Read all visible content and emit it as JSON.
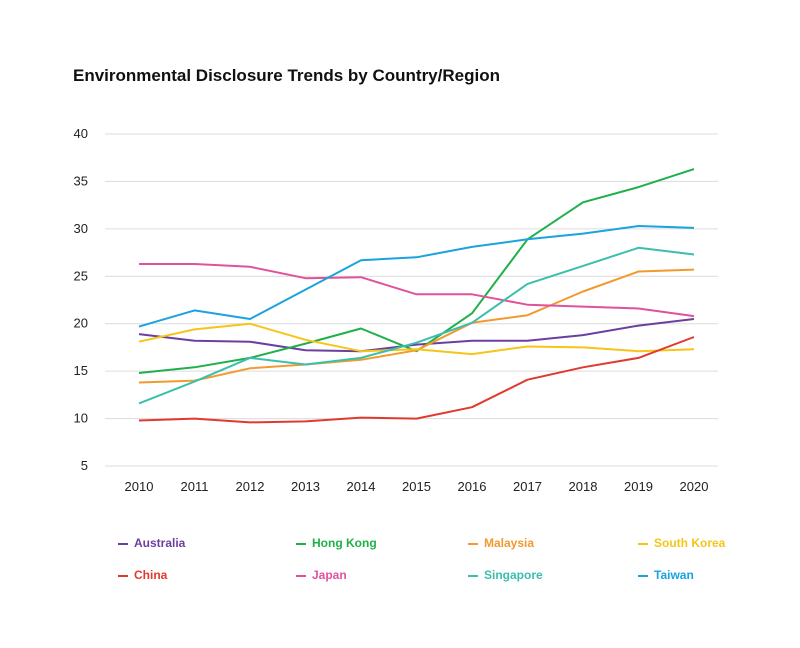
{
  "chart_data": {
    "type": "line",
    "title": "Environmental Disclosure Trends by Country/Region",
    "xlabel": "",
    "ylabel": "",
    "x": [
      "2010",
      "2011",
      "2012",
      "2013",
      "2014",
      "2015",
      "2016",
      "2017",
      "2018",
      "2019",
      "2020"
    ],
    "yticks": [
      5,
      10,
      15,
      20,
      25,
      30,
      35,
      40
    ],
    "ylim": [
      5,
      40
    ],
    "grid": true,
    "legend_position": "bottom",
    "series": [
      {
        "name": "Australia",
        "color": "#6b3fa0",
        "values": [
          18.9,
          18.2,
          18.1,
          17.2,
          17.1,
          17.8,
          18.2,
          18.2,
          18.8,
          19.8,
          20.5
        ]
      },
      {
        "name": "Hong Kong",
        "color": "#1fb04a",
        "values": [
          14.8,
          15.4,
          16.4,
          17.9,
          19.5,
          17.1,
          21.1,
          28.9,
          32.8,
          34.4,
          36.3
        ]
      },
      {
        "name": "Malaysia",
        "color": "#f29a2e",
        "values": [
          13.8,
          14.0,
          15.3,
          15.7,
          16.2,
          17.2,
          20.1,
          20.9,
          23.4,
          25.5,
          25.7
        ]
      },
      {
        "name": "South Korea",
        "color": "#f5c518",
        "values": [
          18.1,
          19.4,
          20.0,
          18.3,
          17.1,
          17.3,
          16.8,
          17.6,
          17.5,
          17.1,
          17.3
        ]
      },
      {
        "name": "China",
        "color": "#e03a2e",
        "values": [
          9.8,
          10.0,
          9.6,
          9.7,
          10.1,
          10.0,
          11.2,
          14.1,
          15.4,
          16.4,
          18.6
        ]
      },
      {
        "name": "Japan",
        "color": "#e0529c",
        "values": [
          26.3,
          26.3,
          26.0,
          24.8,
          24.9,
          23.1,
          23.1,
          22.0,
          21.8,
          21.6,
          20.8
        ]
      },
      {
        "name": "Singapore",
        "color": "#3bbfad",
        "values": [
          11.6,
          13.9,
          16.4,
          15.7,
          16.4,
          18.0,
          20.1,
          24.2,
          26.1,
          28.0,
          27.3
        ]
      },
      {
        "name": "Taiwan",
        "color": "#1aa3dc",
        "values": [
          19.7,
          21.4,
          20.5,
          23.6,
          26.7,
          27.0,
          28.1,
          28.9,
          29.5,
          30.3,
          30.1
        ]
      }
    ]
  }
}
